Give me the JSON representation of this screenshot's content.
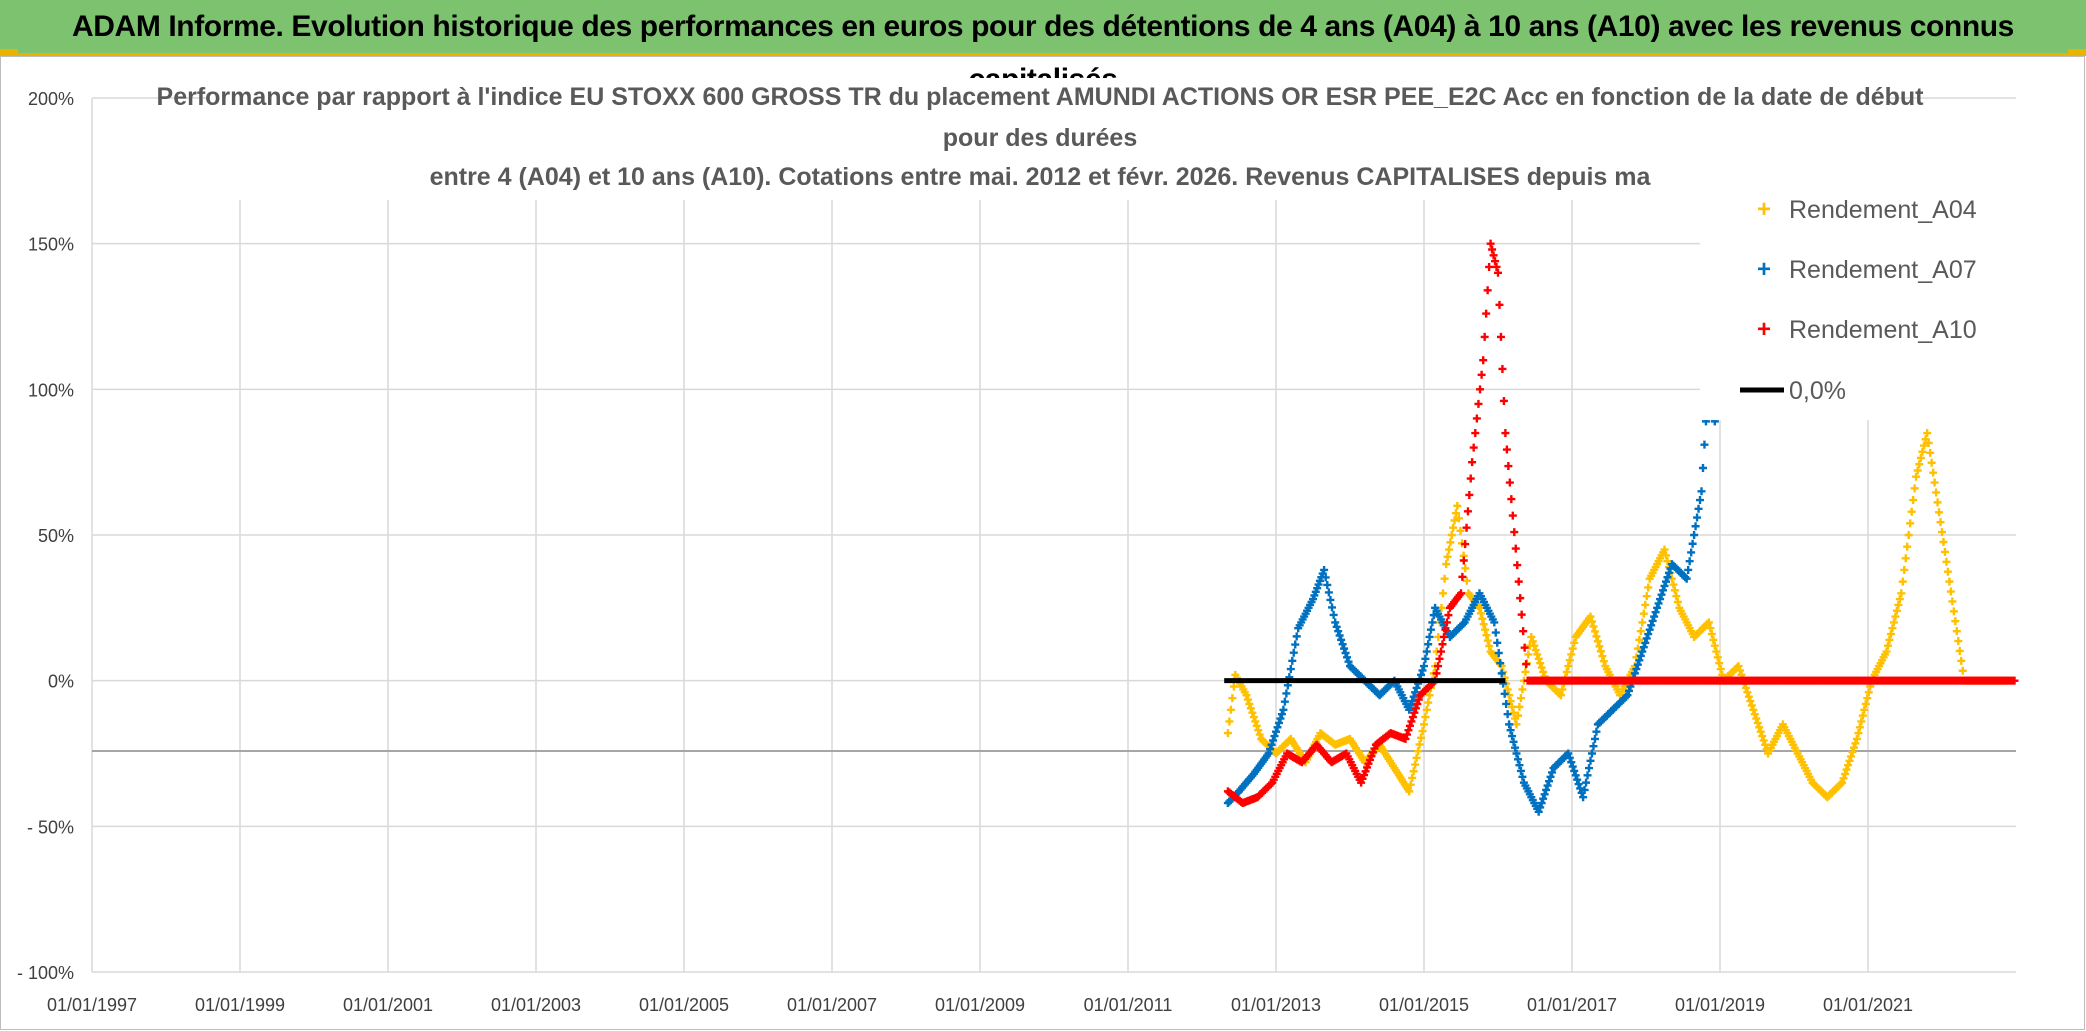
{
  "banner": {
    "title": "ADAM Informe. Evolution historique des performances en euros pour des détentions de 4 ans (A04) à 10 ans (A10) avec les revenus connus capitalisés",
    "background": "#7dc36f",
    "accent": "#e8b400"
  },
  "chart_data": {
    "type": "scatter",
    "title_lines": [
      "Performance par rapport à l'indice EU STOXX 600 GROSS TR  du placement AMUNDI ACTIONS OR ESR PEE_E2C Acc en fonction de la date de début",
      "pour des durées",
      "entre 4 (A04) et 10 ans (A10). Cotations entre mai. 2012 et févr. 2026. Revenus CAPITALISES depuis ma"
    ],
    "x_ticks": [
      "01/01/1997",
      "01/01/1999",
      "01/01/2001",
      "01/01/2003",
      "01/01/2005",
      "01/01/2007",
      "01/01/2009",
      "01/01/2011",
      "01/01/2013",
      "01/01/2015",
      "01/01/2017",
      "01/01/2019",
      "01/01/2021"
    ],
    "x_range": [
      1997.0,
      2023.0
    ],
    "y_ticks": [
      "200%",
      "150%",
      "100%",
      "50%",
      "0%",
      "- 50%",
      "- 100%"
    ],
    "y_tick_values": [
      200,
      150,
      100,
      50,
      0,
      -50,
      -100
    ],
    "y_range": [
      -100,
      200
    ],
    "series": [
      {
        "name": "Rendement_A04",
        "color": "#ffc000",
        "points": [
          [
            2012.35,
            -18
          ],
          [
            2012.45,
            2
          ],
          [
            2012.6,
            -5
          ],
          [
            2012.8,
            -20
          ],
          [
            2013.0,
            -25
          ],
          [
            2013.2,
            -20
          ],
          [
            2013.4,
            -28
          ],
          [
            2013.6,
            -18
          ],
          [
            2013.8,
            -22
          ],
          [
            2014.0,
            -20
          ],
          [
            2014.2,
            -28
          ],
          [
            2014.4,
            -22
          ],
          [
            2014.6,
            -30
          ],
          [
            2014.8,
            -38
          ],
          [
            2015.0,
            -15
          ],
          [
            2015.15,
            5
          ],
          [
            2015.3,
            40
          ],
          [
            2015.45,
            60
          ],
          [
            2015.6,
            30
          ],
          [
            2015.75,
            25
          ],
          [
            2015.9,
            10
          ],
          [
            2016.05,
            5
          ],
          [
            2016.25,
            -15
          ],
          [
            2016.45,
            15
          ],
          [
            2016.65,
            0
          ],
          [
            2016.85,
            -5
          ],
          [
            2017.05,
            15
          ],
          [
            2017.25,
            22
          ],
          [
            2017.45,
            5
          ],
          [
            2017.65,
            -5
          ],
          [
            2017.85,
            5
          ],
          [
            2018.05,
            35
          ],
          [
            2018.25,
            45
          ],
          [
            2018.45,
            25
          ],
          [
            2018.65,
            15
          ],
          [
            2018.85,
            20
          ],
          [
            2019.05,
            0
          ],
          [
            2019.25,
            5
          ],
          [
            2019.45,
            -10
          ],
          [
            2019.65,
            -25
          ],
          [
            2019.85,
            -15
          ],
          [
            2020.05,
            -25
          ],
          [
            2020.25,
            -35
          ],
          [
            2020.45,
            -40
          ],
          [
            2020.65,
            -35
          ],
          [
            2020.85,
            -20
          ],
          [
            2021.05,
            0
          ],
          [
            2021.25,
            10
          ],
          [
            2021.45,
            30
          ],
          [
            2021.65,
            70
          ],
          [
            2021.8,
            85
          ],
          [
            2022.3,
            0
          ],
          [
            2022.9,
            0
          ]
        ]
      },
      {
        "name": "Rendement_A07",
        "color": "#0070c0",
        "points": [
          [
            2012.35,
            -42
          ],
          [
            2012.5,
            -38
          ],
          [
            2012.7,
            -32
          ],
          [
            2012.9,
            -25
          ],
          [
            2013.1,
            -10
          ],
          [
            2013.3,
            18
          ],
          [
            2013.5,
            28
          ],
          [
            2013.65,
            38
          ],
          [
            2013.8,
            20
          ],
          [
            2014.0,
            5
          ],
          [
            2014.2,
            0
          ],
          [
            2014.4,
            -5
          ],
          [
            2014.6,
            0
          ],
          [
            2014.8,
            -10
          ],
          [
            2015.0,
            5
          ],
          [
            2015.15,
            25
          ],
          [
            2015.35,
            15
          ],
          [
            2015.55,
            20
          ],
          [
            2015.75,
            30
          ],
          [
            2015.95,
            20
          ],
          [
            2016.15,
            -15
          ],
          [
            2016.35,
            -35
          ],
          [
            2016.55,
            -45
          ],
          [
            2016.75,
            -30
          ],
          [
            2016.95,
            -25
          ],
          [
            2017.15,
            -40
          ],
          [
            2017.35,
            -15
          ],
          [
            2017.55,
            -10
          ],
          [
            2017.75,
            -5
          ],
          [
            2017.95,
            10
          ],
          [
            2018.15,
            25
          ],
          [
            2018.35,
            40
          ],
          [
            2018.55,
            35
          ],
          [
            2018.75,
            65
          ],
          [
            2018.85,
            105
          ],
          [
            2018.95,
            85
          ]
        ]
      },
      {
        "name": "Rendement_A10",
        "color": "#ff0000",
        "points": [
          [
            2012.35,
            -38
          ],
          [
            2012.55,
            -42
          ],
          [
            2012.75,
            -40
          ],
          [
            2012.95,
            -35
          ],
          [
            2013.15,
            -25
          ],
          [
            2013.35,
            -28
          ],
          [
            2013.55,
            -22
          ],
          [
            2013.75,
            -28
          ],
          [
            2013.95,
            -25
          ],
          [
            2014.15,
            -35
          ],
          [
            2014.35,
            -22
          ],
          [
            2014.55,
            -18
          ],
          [
            2014.75,
            -20
          ],
          [
            2014.95,
            -5
          ],
          [
            2015.15,
            0
          ],
          [
            2015.35,
            25
          ],
          [
            2015.5,
            30
          ],
          [
            2015.65,
            75
          ],
          [
            2015.8,
            110
          ],
          [
            2015.9,
            150
          ],
          [
            2016.0,
            140
          ],
          [
            2016.1,
            85
          ],
          [
            2016.4,
            0
          ],
          [
            2017.5,
            0
          ],
          [
            2019.0,
            0
          ],
          [
            2020.5,
            0
          ],
          [
            2022.2,
            0
          ],
          [
            2023.0,
            0
          ]
        ]
      }
    ],
    "reference_line": {
      "name": "0,0%",
      "color": "#000000",
      "value": 0,
      "x_from": 2012.3,
      "x_to": 2016.1
    },
    "legend": [
      "Rendement_A04",
      "Rendement_A07",
      "Rendement_A10",
      "0,0%"
    ],
    "legend_position": "top-right"
  }
}
